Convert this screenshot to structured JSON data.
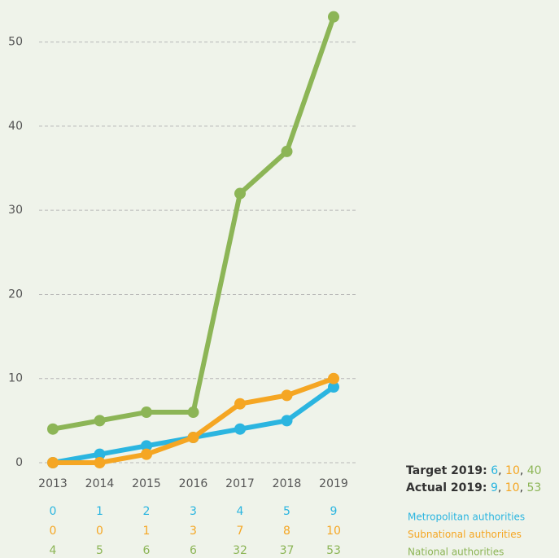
{
  "chart_data": {
    "type": "line",
    "categories": [
      "2013",
      "2014",
      "2015",
      "2016",
      "2017",
      "2018",
      "2019"
    ],
    "series": [
      {
        "name": "Metropolitan authorities",
        "color": "#2bb5e0",
        "values": [
          0,
          1,
          2,
          3,
          4,
          5,
          9
        ]
      },
      {
        "name": "Subnational authorities",
        "color": "#f5a623",
        "values": [
          0,
          0,
          1,
          3,
          7,
          8,
          10
        ]
      },
      {
        "name": "National authorities",
        "color": "#8cb556",
        "values": [
          4,
          5,
          6,
          6,
          32,
          37,
          53
        ]
      }
    ],
    "ylim": [
      0,
      55
    ],
    "yticks": [
      0,
      10,
      20,
      30,
      40,
      50
    ],
    "grid": true,
    "target": {
      "label": "Target 2019:",
      "values": [
        6,
        10,
        40
      ]
    },
    "actual": {
      "label": "Actual 2019:",
      "values": [
        9,
        10,
        53
      ]
    },
    "separator": ", "
  }
}
